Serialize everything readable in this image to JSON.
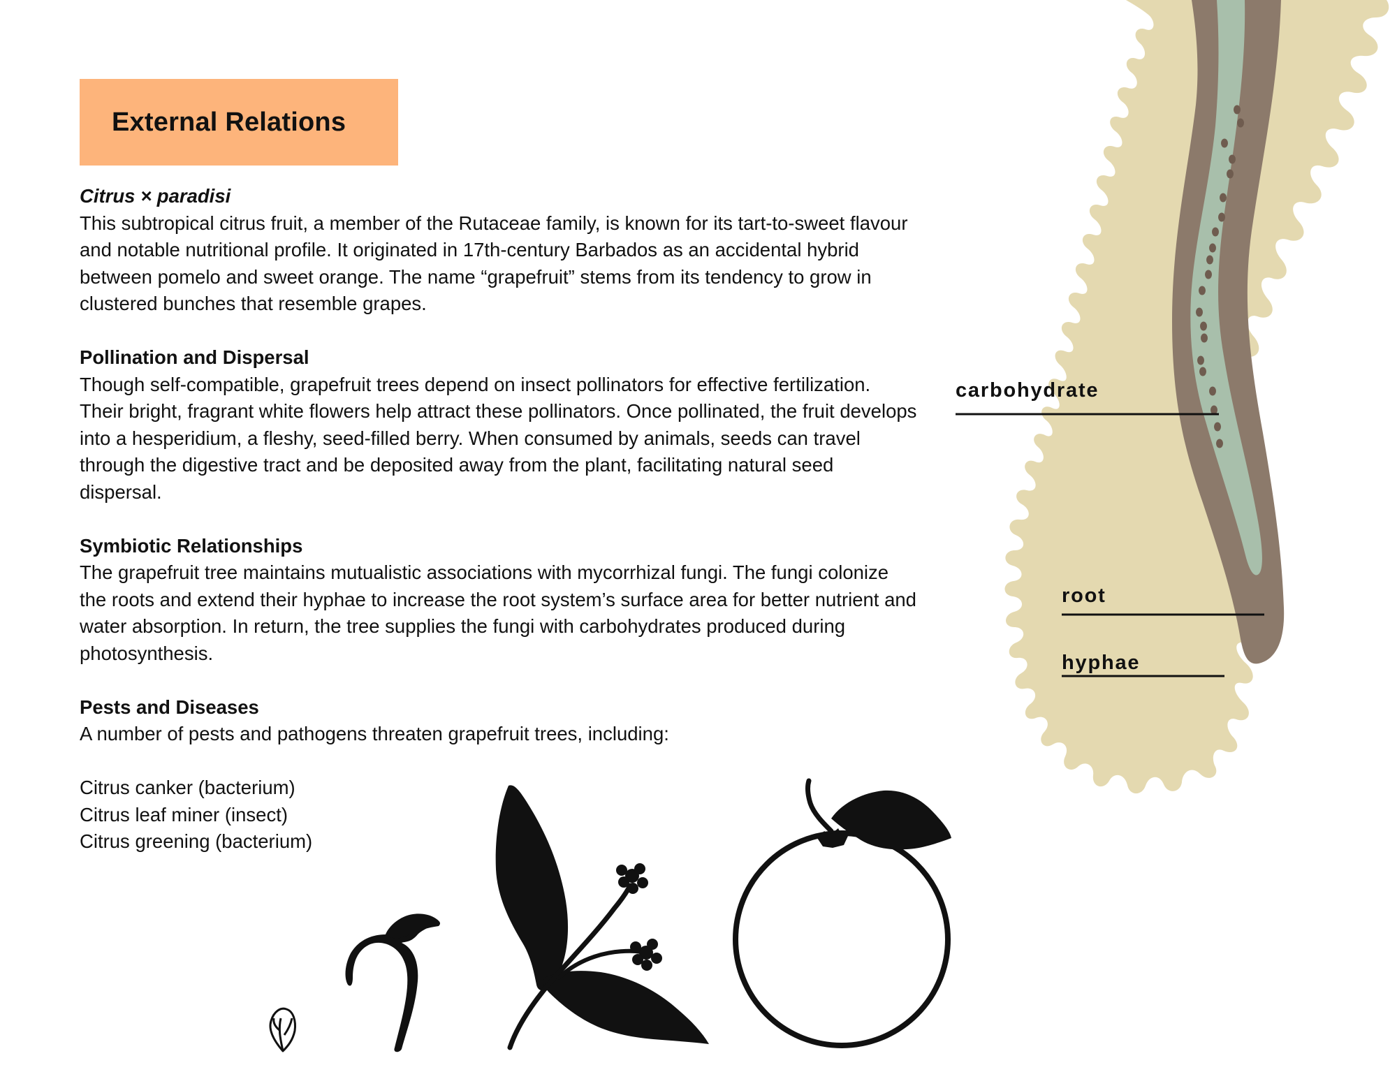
{
  "header": {
    "title": "External Relations"
  },
  "intro": {
    "species": "Citrus × paradisi",
    "text": "This subtropical citrus fruit, a member of the Rutaceae family, is known for its tart-to-sweet flavour and notable nutritional profile. It originated in 17th-century Barbados as an accidental hybrid between pomelo and sweet orange. The name “grapefruit” stems from its tendency to grow in clustered bunches that resemble grapes."
  },
  "sections": [
    {
      "heading": "Pollination and Dispersal",
      "text": "Though self-compatible, grapefruit trees depend on insect pollinators for effective fertilization. Their bright, fragrant white flowers help attract these pollinators. Once pollinated, the fruit develops into a hesperidium, a fleshy, seed-filled berry. When consumed by animals, seeds can travel through the digestive tract and be deposited away from the plant, facilitating natural seed dispersal."
    },
    {
      "heading": "Symbiotic Relationships",
      "text": "The grapefruit tree maintains mutualistic associations with mycorrhizal fungi. The fungi colonize the roots and extend their hyphae to increase the root system’s surface area for better nutrient and water absorption. In return, the tree supplies the fungi with carbohydrates produced during photosynthesis."
    },
    {
      "heading": "Pests and Diseases",
      "text": "A number of pests and pathogens threaten grapefruit trees, including:"
    }
  ],
  "pests": [
    "Citrus canker (bacterium)",
    "Citrus leaf miner (insect)",
    "Citrus greening (bacterium)"
  ],
  "diagram": {
    "labels": {
      "carbohydrate": "carbohydrate",
      "root": "root",
      "hyphae": "hyphae"
    },
    "colors": {
      "hyphae_fill": "#e4d9b0",
      "root_outer": "#8c7a6b",
      "root_inner": "#a8bfab",
      "dots": "#6f5c4f",
      "title_box": "#fdb47b"
    }
  },
  "life_cycle_icons": [
    "seed-icon",
    "seedling-icon",
    "flowering-branch-icon",
    "fruit-icon"
  ]
}
